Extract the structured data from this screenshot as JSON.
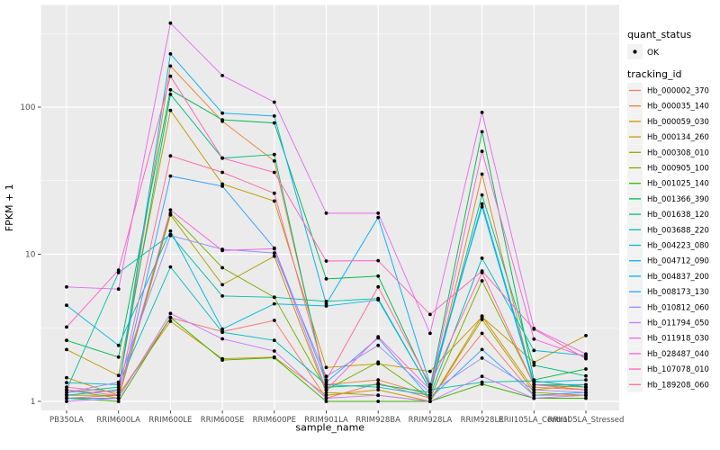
{
  "figure": {
    "y_axis": {
      "title": "FPKM + 1",
      "tick_labels": [
        "100",
        "10",
        "1"
      ],
      "tick_values": [
        100,
        10,
        1
      ]
    },
    "x_axis": {
      "title": "sample_name"
    },
    "legend": {
      "quant_status_title": "quant_status",
      "quant_status_items": [
        {
          "label": "OK",
          "symbol": "point"
        }
      ],
      "tracking_title": "tracking_id"
    }
  },
  "chart_data": {
    "type": "line",
    "title": "",
    "xlabel": "sample_name",
    "ylabel": "FPKM + 1",
    "y_scale": "log10",
    "ylim": [
      0.87,
      490
    ],
    "grid": true,
    "legend_position": "right",
    "panel_background": "#EBEBEB",
    "gridline_color": "#FFFFFF",
    "point_color": "#000000",
    "tick_color": "#333333",
    "tick_label_color": "#4D4D4D",
    "categories": [
      "PB350LA",
      "RRIM600LA",
      "RRIM600LE",
      "RRIM600SE",
      "RRIM600PE",
      "RRIM901LA",
      "RRIM928BA",
      "RRIM928LA",
      "RRIM928LE",
      "RRII105LA_Control",
      "RRII105LA_Stressed"
    ],
    "series": [
      {
        "name": "Hb_000002_370",
        "color": "#F8766D",
        "quant_status": "OK",
        "values": [
          1.05,
          1.1,
          3.7,
          2.98,
          3.55,
          1.05,
          1.33,
          1.05,
          2.9,
          1.1,
          1.1
        ]
      },
      {
        "name": "Hb_000035_140",
        "color": "#EA8331",
        "quant_status": "OK",
        "values": [
          1.1,
          1.2,
          190,
          80,
          43,
          1.3,
          1.4,
          1.1,
          35,
          1.25,
          1.2
        ]
      },
      {
        "name": "Hb_000059_030",
        "color": "#D89000",
        "quant_status": "OK",
        "values": [
          1.45,
          1.1,
          3.5,
          1.95,
          2.0,
          1.1,
          1.2,
          1.0,
          3.8,
          1.2,
          1.3
        ]
      },
      {
        "name": "Hb_000134_260",
        "color": "#C09B00",
        "quant_status": "OK",
        "values": [
          2.25,
          1.5,
          95,
          30,
          23,
          1.7,
          1.8,
          1.6,
          3.75,
          1.84,
          2.8
        ]
      },
      {
        "name": "Hb_000308_010",
        "color": "#A3A500",
        "quant_status": "OK",
        "values": [
          1.2,
          1.05,
          18.5,
          6.2,
          9.7,
          1.15,
          1.1,
          1.0,
          3.6,
          1.15,
          1.1
        ]
      },
      {
        "name": "Hb_000905_100",
        "color": "#7CAE00",
        "quant_status": "OK",
        "values": [
          1.1,
          1.1,
          19.0,
          8.1,
          5.1,
          1.2,
          1.85,
          1.05,
          6.6,
          1.3,
          1.25
        ]
      },
      {
        "name": "Hb_001025_140",
        "color": "#39B600",
        "quant_status": "OK",
        "values": [
          1.05,
          1.0,
          3.72,
          1.91,
          1.98,
          1.0,
          1.0,
          1.0,
          1.31,
          1.05,
          1.05
        ]
      },
      {
        "name": "Hb_001366_390",
        "color": "#00BB4E",
        "quant_status": "OK",
        "values": [
          2.6,
          2.0,
          131,
          82,
          78,
          6.8,
          7.1,
          1.25,
          68,
          1.4,
          1.66
        ]
      },
      {
        "name": "Hb_001638_120",
        "color": "#00BF7D",
        "quant_status": "OK",
        "values": [
          1.15,
          1.25,
          122,
          45,
          47.6,
          1.25,
          1.3,
          1.15,
          25.3,
          1.76,
          1.49
        ]
      },
      {
        "name": "Hb_003688_220",
        "color": "#00C1A3",
        "quant_status": "OK",
        "values": [
          1.2,
          7.5,
          13.6,
          5.2,
          5.1,
          4.78,
          5.0,
          1.2,
          1.35,
          1.38,
          1.25
        ]
      },
      {
        "name": "Hb_004223_080",
        "color": "#00BFC4",
        "quant_status": "OK",
        "values": [
          1.34,
          1.3,
          8.2,
          2.95,
          2.6,
          1.3,
          1.25,
          1.1,
          9.4,
          2.22,
          2.05
        ]
      },
      {
        "name": "Hb_004712_090",
        "color": "#00BAE0",
        "quant_status": "OK",
        "values": [
          4.5,
          2.4,
          14.4,
          3.1,
          4.6,
          4.45,
          4.9,
          1.2,
          22.0,
          1.35,
          1.4
        ]
      },
      {
        "name": "Hb_004837_200",
        "color": "#00B0F6",
        "quant_status": "OK",
        "values": [
          1.1,
          1.2,
          230,
          91,
          87,
          4.6,
          17.8,
          1.3,
          21.0,
          1.3,
          1.3
        ]
      },
      {
        "name": "Hb_008173_130",
        "color": "#35A2FF",
        "quant_status": "OK",
        "values": [
          1.05,
          1.05,
          34,
          29,
          11,
          1.35,
          2.7,
          1.05,
          2.25,
          1.1,
          1.15
        ]
      },
      {
        "name": "Hb_010812_060",
        "color": "#9590FF",
        "quant_status": "OK",
        "values": [
          1.15,
          1.35,
          13.4,
          10.8,
          10.2,
          1.48,
          2.4,
          1.15,
          1.97,
          1.2,
          1.15
        ]
      },
      {
        "name": "Hb_011794_050",
        "color": "#C77CFF",
        "quant_status": "OK",
        "values": [
          1.0,
          1.05,
          3.96,
          2.66,
          2.2,
          1.05,
          1.1,
          1.0,
          1.48,
          1.05,
          1.1
        ]
      },
      {
        "name": "Hb_011918_030",
        "color": "#E76BF3",
        "quant_status": "OK",
        "values": [
          6.0,
          5.8,
          372,
          164,
          108,
          19.0,
          19.0,
          2.9,
          92,
          3.13,
          2.1
        ]
      },
      {
        "name": "Hb_028487_040",
        "color": "#FA62DB",
        "quant_status": "OK",
        "values": [
          1.2,
          1.1,
          20.0,
          10.6,
          10.9,
          1.2,
          2.75,
          1.2,
          50,
          2.65,
          2.0
        ]
      },
      {
        "name": "Hb_107078_010",
        "color": "#FF62BC",
        "quant_status": "OK",
        "values": [
          3.2,
          7.8,
          162,
          45,
          36,
          9.0,
          9.05,
          3.9,
          7.7,
          3.1,
          1.95
        ]
      },
      {
        "name": "Hb_189208_060",
        "color": "#FF6A98",
        "quant_status": "OK",
        "values": [
          1.25,
          1.15,
          46.6,
          36,
          26,
          1.4,
          6.0,
          1.3,
          7.5,
          1.3,
          1.2
        ]
      }
    ]
  }
}
